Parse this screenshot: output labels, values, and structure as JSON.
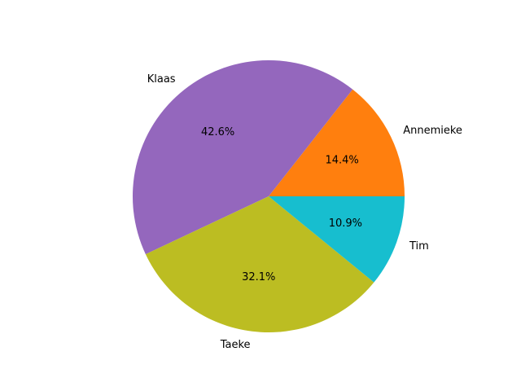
{
  "chart_data": {
    "type": "pie",
    "title": "",
    "start_angle_deg": 0,
    "direction": "counterclockwise",
    "slices": [
      {
        "label": "Annemieke",
        "value": 14.4,
        "pct_label": "14.4%",
        "color": "#ff7f0e"
      },
      {
        "label": "Klaas",
        "value": 42.6,
        "pct_label": "42.6%",
        "color": "#9467bd"
      },
      {
        "label": "Taeke",
        "value": 32.1,
        "pct_label": "32.1%",
        "color": "#bcbd22"
      },
      {
        "label": "Tim",
        "value": 10.9,
        "pct_label": "10.9%",
        "color": "#17becf"
      }
    ]
  }
}
